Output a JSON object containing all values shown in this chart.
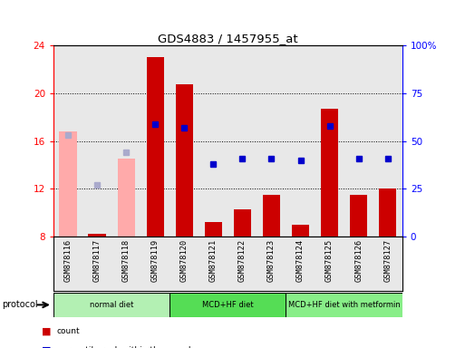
{
  "title": "GDS4883 / 1457955_at",
  "samples": [
    "GSM878116",
    "GSM878117",
    "GSM878118",
    "GSM878119",
    "GSM878120",
    "GSM878121",
    "GSM878122",
    "GSM878123",
    "GSM878124",
    "GSM878125",
    "GSM878126",
    "GSM878127"
  ],
  "count_values": [
    null,
    8.2,
    null,
    23.0,
    20.7,
    9.2,
    10.3,
    11.5,
    9.0,
    18.7,
    11.5,
    12.0
  ],
  "count_absent": [
    16.8,
    null,
    null,
    null,
    null,
    null,
    null,
    null,
    null,
    null,
    null,
    null
  ],
  "value_absent": [
    null,
    null,
    14.5,
    null,
    null,
    null,
    null,
    null,
    null,
    null,
    null,
    null
  ],
  "rank_values": [
    null,
    null,
    null,
    59.0,
    57.0,
    38.0,
    41.0,
    41.0,
    40.0,
    58.0,
    41.0,
    41.0
  ],
  "rank_absent": [
    53.0,
    27.0,
    null,
    null,
    null,
    null,
    null,
    null,
    null,
    null,
    null,
    null
  ],
  "rank_absent2": [
    null,
    null,
    44.0,
    null,
    null,
    null,
    null,
    null,
    null,
    null,
    null,
    null
  ],
  "groups": [
    {
      "label": "normal diet",
      "start": 0,
      "end": 3
    },
    {
      "label": "MCD+HF diet",
      "start": 4,
      "end": 7
    },
    {
      "label": "MCD+HF diet with metformin",
      "start": 8,
      "end": 11
    }
  ],
  "group_colors": [
    "#b3f0b3",
    "#55dd55",
    "#88ee88"
  ],
  "ylim_left": [
    8,
    24
  ],
  "ylim_right": [
    0,
    100
  ],
  "yticks_left": [
    8,
    12,
    16,
    20,
    24
  ],
  "yticks_right": [
    0,
    25,
    50,
    75,
    100
  ],
  "yticklabels_right": [
    "0",
    "25",
    "50",
    "75",
    "100%"
  ],
  "bar_color": "#cc0000",
  "absent_bar_color": "#ffaaaa",
  "dot_color": "#0000cc",
  "absent_dot_color": "#aaaacc",
  "bg_color": "#e8e8e8"
}
